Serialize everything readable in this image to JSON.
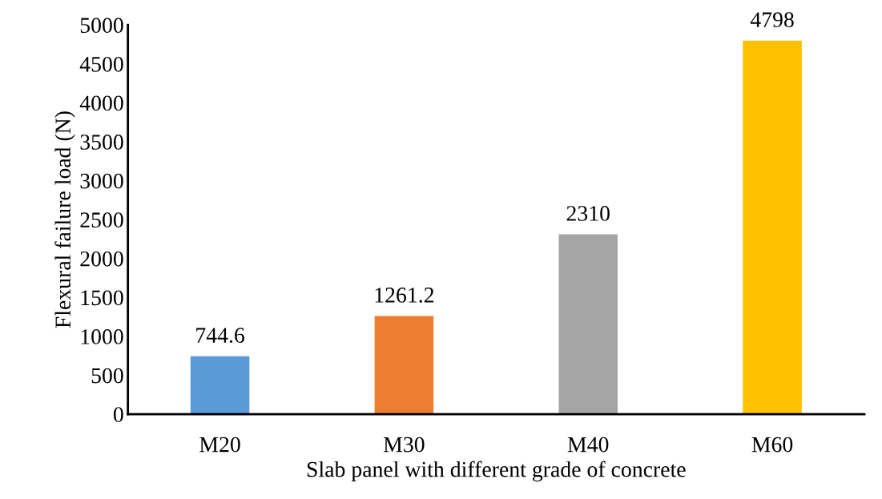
{
  "chart_data": {
    "type": "bar",
    "categories": [
      "M20",
      "M30",
      "M40",
      "M60"
    ],
    "values": [
      744.6,
      1261.2,
      2310,
      4798
    ],
    "colors": [
      "#5b9bd5",
      "#ed7d31",
      "#a5a5a5",
      "#ffc000"
    ],
    "xlabel": "Slab panel with different grade of concrete",
    "ylabel": "Flexural failure load (N)",
    "ylim": [
      0,
      5000
    ],
    "yticks": [
      0,
      500,
      1000,
      1500,
      2000,
      2500,
      3000,
      3500,
      4000,
      4500,
      5000
    ],
    "data_labels": true,
    "grid": false,
    "legend": false
  }
}
